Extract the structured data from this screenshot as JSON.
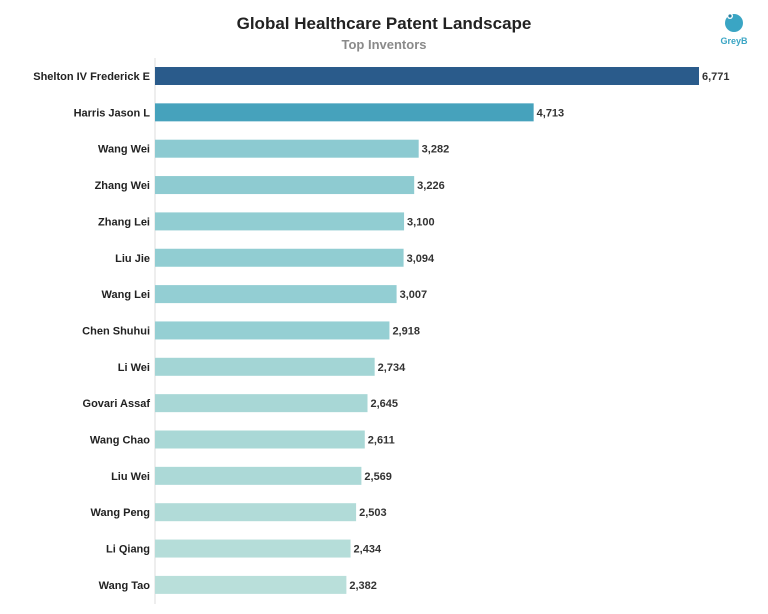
{
  "title": "Global Healthcare Patent Landscape",
  "subtitle": "Top Inventors",
  "logo": {
    "text": "GreyB",
    "icon": "greyb-logo-icon",
    "color": "#3aa5c4"
  },
  "chart_data": {
    "type": "bar",
    "orientation": "horizontal",
    "title": "Global Healthcare Patent Landscape",
    "subtitle": "Top Inventors",
    "categories": [
      "Shelton IV Frederick E",
      "Harris Jason L",
      "Wang Wei",
      "Zhang Wei",
      "Zhang Lei",
      "Liu Jie",
      "Wang Lei",
      "Chen Shuhui",
      "Li Wei",
      "Govari Assaf",
      "Wang Chao",
      "Liu Wei",
      "Wang Peng",
      "Li Qiang",
      "Wang Tao"
    ],
    "values": [
      6771,
      4713,
      3282,
      3226,
      3100,
      3094,
      3007,
      2918,
      2734,
      2645,
      2611,
      2569,
      2503,
      2434,
      2382
    ],
    "value_labels": [
      "6,771",
      "4,713",
      "3,282",
      "3,226",
      "3,100",
      "3,094",
      "3,007",
      "2,918",
      "2,734",
      "2,645",
      "2,611",
      "2,569",
      "2,503",
      "2,434",
      "2,382"
    ],
    "bar_colors": [
      "#2a5b8b",
      "#46a2bc",
      "#8ccad1",
      "#8ecbd1",
      "#91cdd2",
      "#91cdd2",
      "#93ced3",
      "#95cfd3",
      "#a3d5d5",
      "#a8d7d6",
      "#a9d8d6",
      "#acd9d7",
      "#b1dbd8",
      "#b5ddd9",
      "#b9dfda"
    ],
    "xlim": [
      0,
      6771
    ],
    "grid": false,
    "legend": "none"
  }
}
